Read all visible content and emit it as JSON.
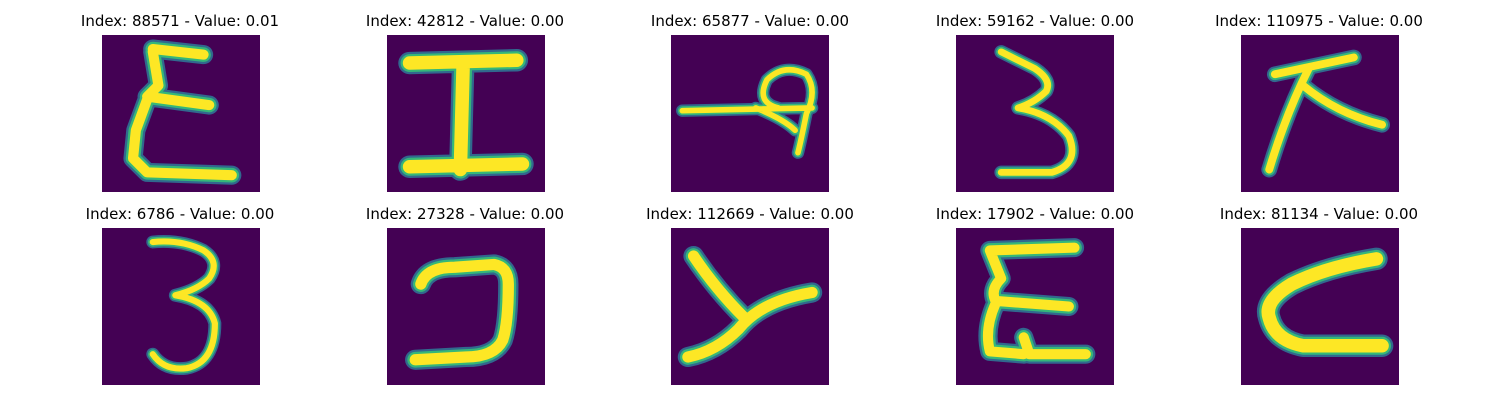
{
  "colors": {
    "background": "#440154",
    "stroke_core": "#fde725",
    "stroke_mid": "#35b779",
    "stroke_edge": "#31688e"
  },
  "panels": [
    {
      "label": "Index: 88571 - Value: 0.01",
      "glyph": "handwritten-sigma-like-E"
    },
    {
      "label": "Index: 42812 - Value: 0.00",
      "glyph": "handwritten-I"
    },
    {
      "label": "Index: 65877 - Value: 0.00",
      "glyph": "handwritten-rotated-character"
    },
    {
      "label": "Index: 59162 - Value: 0.00",
      "glyph": "handwritten-3"
    },
    {
      "label": "Index: 110975 - Value: 0.00",
      "glyph": "handwritten-A-like"
    },
    {
      "label": "Index: 6786 - Value: 0.00",
      "glyph": "handwritten-3"
    },
    {
      "label": "Index: 27328 - Value: 0.00",
      "glyph": "handwritten-reversed-C"
    },
    {
      "label": "Index: 112669 - Value: 0.00",
      "glyph": "handwritten-y"
    },
    {
      "label": "Index: 17902 - Value: 0.00",
      "glyph": "handwritten-sigma-like-E"
    },
    {
      "label": "Index: 81134 - Value: 0.00",
      "glyph": "handwritten-C"
    }
  ]
}
